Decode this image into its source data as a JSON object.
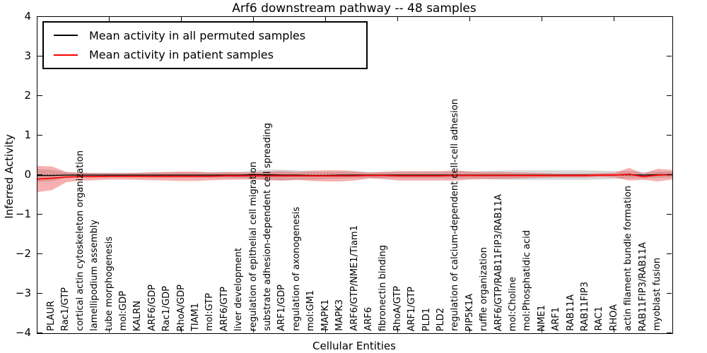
{
  "figure": {
    "title": "Arf6 downstream pathway -- 48 samples",
    "xlabel": "Cellular Entities",
    "ylabel": "Inferred Activity"
  },
  "chart_data": {
    "type": "line",
    "title": "Arf6 downstream pathway -- 48 samples",
    "xlabel": "Cellular Entities",
    "ylabel": "Inferred Activity",
    "ylim": [
      -4,
      4
    ],
    "ytick_labels": [
      "4",
      "3",
      "2",
      "1",
      "0",
      "−1",
      "−2",
      "−3",
      "−4"
    ],
    "ytick_values": [
      4,
      3,
      2,
      1,
      0,
      -1,
      -2,
      -3,
      -4
    ],
    "xtick_positions": [
      5,
      10,
      15,
      20,
      25,
      30,
      35,
      40
    ],
    "x_axis_units": 44,
    "category_x_start": 1,
    "grid": false,
    "legend_position": "upper left",
    "zero_line": 0,
    "categories": [
      "PLAUR",
      "Rac1/GTP",
      "cortical actin cytoskeleton organization",
      "lamellipodium assembly",
      "tube morphogenesis",
      "mol:GDP",
      "KALRN",
      "ARF6/GDP",
      "Rac1/GDP",
      "RhoA/GDP",
      "TIAM1",
      "mol:GTP",
      "ARF6/GTP",
      "liver development",
      "regulation of epithelial cell migration",
      "substrate adhesion-dependent cell spreading",
      "ARF1/GDP",
      "regulation of axonogenesis",
      "mol:GM1",
      "MAPK1",
      "MAPK3",
      "ARF6/GTP/NME1/Tiam1",
      "ARF6",
      "fibronectin binding",
      "RhoA/GTP",
      "ARF1/GTP",
      "PLD1",
      "PLD2",
      "regulation of calcium-dependent cell-cell adhesion",
      "PIP5K1A",
      "ruffle organization",
      "ARF6/GTP/RAB11FIP3/RAB11A",
      "mol:Choline",
      "mol:Phosphatidic acid",
      "NME1",
      "ARF1",
      "RAB11A",
      "RAB11FIP3",
      "RAC1",
      "RHOA",
      "actin filament bundle formation",
      "RAB11FIP3/RAB11A",
      "myoblast fusion"
    ],
    "series": [
      {
        "name": "Mean activity in all permuted samples",
        "color": "#000000",
        "band_color": "#aaaaaa",
        "band_alpha": 0.45,
        "line_width": 1.3,
        "mean": [
          -0.01,
          -0.01,
          0,
          0,
          0,
          0,
          0,
          0,
          0,
          0,
          0,
          0,
          0,
          0,
          0,
          0.01,
          0.01,
          0,
          0,
          -0.01,
          -0.01,
          0,
          0,
          0,
          0,
          0,
          0,
          0,
          0,
          0,
          0,
          0,
          0,
          0,
          0,
          0,
          0,
          0,
          0,
          0,
          0,
          0.01,
          0,
          0.01,
          0.01
        ],
        "std": [
          0.16,
          0.14,
          0.07,
          0.06,
          0.06,
          0.06,
          0.06,
          0.06,
          0.07,
          0.07,
          0.07,
          0.07,
          0.07,
          0.07,
          0.08,
          0.1,
          0.13,
          0.14,
          0.12,
          0.1,
          0.09,
          0.09,
          0.08,
          0.08,
          0.08,
          0.08,
          0.08,
          0.08,
          0.08,
          0.09,
          0.09,
          0.1,
          0.11,
          0.12,
          0.12,
          0.12,
          0.12,
          0.12,
          0.12,
          0.11,
          0.1,
          0.09,
          0.08,
          0.08,
          0.08
        ]
      },
      {
        "name": "Mean activity in patient samples",
        "color": "#ff0000",
        "band_color": "#e83030",
        "band_alpha": 0.38,
        "line_width": 1.7,
        "mean": [
          -0.1,
          -0.08,
          -0.05,
          -0.04,
          -0.04,
          -0.03,
          -0.03,
          -0.03,
          -0.03,
          -0.03,
          -0.03,
          -0.03,
          -0.03,
          -0.02,
          -0.02,
          -0.02,
          -0.02,
          -0.02,
          -0.02,
          -0.02,
          -0.02,
          -0.02,
          -0.02,
          -0.01,
          -0.01,
          -0.02,
          -0.02,
          -0.02,
          -0.02,
          -0.01,
          -0.01,
          -0.01,
          -0.01,
          -0.01,
          -0.01,
          -0.01,
          -0.01,
          -0.01,
          -0.01,
          0,
          0,
          0.02,
          -0.04,
          0,
          0.01
        ],
        "std": [
          0.33,
          0.3,
          0.13,
          0.1,
          0.09,
          0.08,
          0.08,
          0.09,
          0.1,
          0.11,
          0.12,
          0.12,
          0.1,
          0.1,
          0.09,
          0.09,
          0.11,
          0.12,
          0.1,
          0.13,
          0.14,
          0.14,
          0.12,
          0.07,
          0.09,
          0.12,
          0.12,
          0.12,
          0.12,
          0.13,
          0.1,
          0.09,
          0.09,
          0.08,
          0.07,
          0.06,
          0.05,
          0.05,
          0.05,
          0.05,
          0.06,
          0.16,
          0.08,
          0.16,
          0.12
        ]
      }
    ]
  }
}
